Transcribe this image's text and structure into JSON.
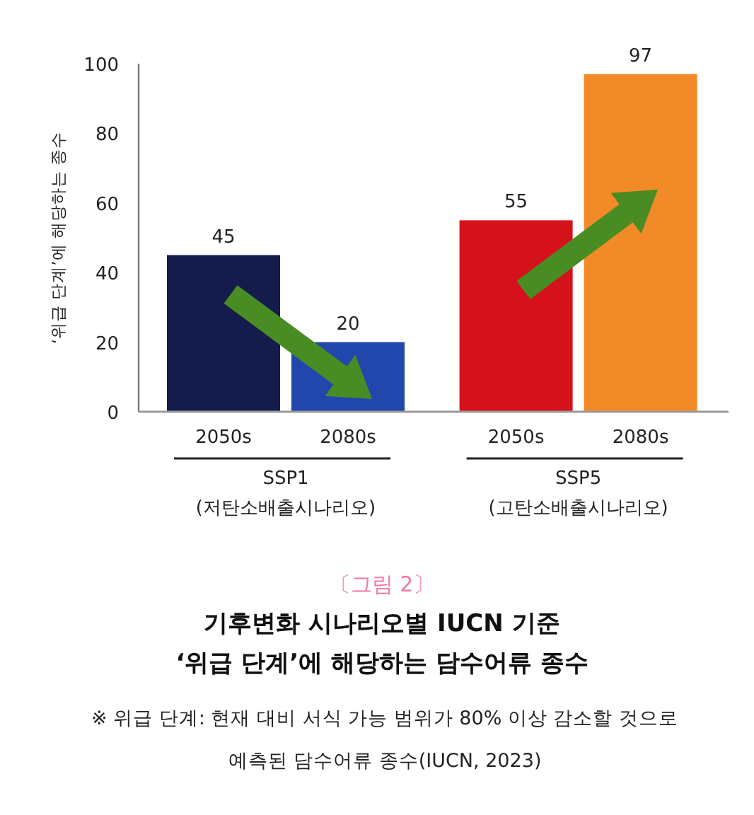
{
  "chart_data": {
    "type": "bar",
    "title": "기후변화 시나리오별 IUCN 기준\n‘위급 단계’에 해당하는 담수어류 종수",
    "ylabel": "‘위급 단계’에 해당하는 종수",
    "categories": [
      "2050s",
      "2080s",
      "2050s",
      "2080s"
    ],
    "values": [
      45,
      20,
      55,
      97
    ],
    "colors": [
      "#131c4a",
      "#2147ad",
      "#d5121b",
      "#f28a28"
    ],
    "ylim": [
      0,
      100
    ],
    "yticks": [
      0,
      20,
      40,
      60,
      80,
      100
    ],
    "data_labels": true,
    "grid": false,
    "annotations": [
      "SSP1\n(저탄소배출시나리오)",
      "SSP5\n(고탄소배출시나리오)",
      "〔그림 2〕",
      "※ 위급 단계: 현재 대비 서식 가능 범위가 80% 이상 감소할 것으로\n예측된 담수어류 종수(IUCN, 2023)"
    ]
  }
}
